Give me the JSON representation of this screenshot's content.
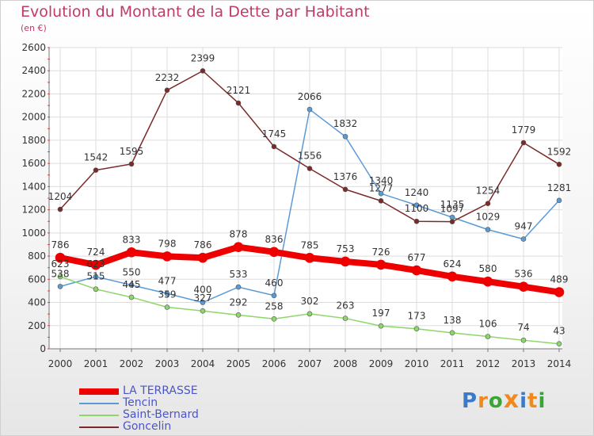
{
  "title": "Evolution du Montant de la Dette par Habitant",
  "subtitle": "(en €)",
  "logo": {
    "letters": [
      "P",
      "r",
      "o",
      "x",
      "i",
      "t",
      "i"
    ],
    "colors": [
      "#3a7ac9",
      "#f08a1e",
      "#3aa537",
      "#f08a1e",
      "#3a7ac9",
      "#f08a1e",
      "#3aa537"
    ]
  },
  "chart_data": {
    "type": "line",
    "title": "Evolution du Montant de la Dette par Habitant",
    "subtitle": "(en €)",
    "x": [
      "2000",
      "2001",
      "2002",
      "2003",
      "2004",
      "2005",
      "2006",
      "2007",
      "2008",
      "2009",
      "2010",
      "2011",
      "2012",
      "2013",
      "2014"
    ],
    "ylim": [
      0,
      2600
    ],
    "yticks": [
      "0",
      "200",
      "400",
      "600",
      "800",
      "1000",
      "1200",
      "1400",
      "1600",
      "1800",
      "2000",
      "2200",
      "2400",
      "2600"
    ],
    "grid": true,
    "legend_position": "bottom-left",
    "series": [
      {
        "name": "LA TERRASSE",
        "color": "#ee0000",
        "width": 8,
        "values": [
          786,
          724,
          833,
          798,
          786,
          878,
          836,
          785,
          753,
          726,
          677,
          624,
          580,
          536,
          489
        ]
      },
      {
        "name": "Tencin",
        "color": "#5b9bd5",
        "width": 1.5,
        "values": [
          538,
          623,
          550,
          477,
          400,
          533,
          460,
          2066,
          1832,
          1340,
          1240,
          1135,
          1029,
          947,
          1281
        ]
      },
      {
        "name": "Saint-Bernard",
        "color": "#8ed56a",
        "width": 1.5,
        "values": [
          623,
          515,
          445,
          359,
          327,
          292,
          258,
          302,
          263,
          197,
          173,
          138,
          106,
          74,
          43
        ]
      },
      {
        "name": "Goncelin",
        "color": "#7a2a2a",
        "width": 1.5,
        "values": [
          1204,
          1542,
          1595,
          2232,
          2399,
          2121,
          1745,
          1556,
          1376,
          1277,
          1100,
          1097,
          1254,
          1779,
          1592
        ]
      }
    ]
  }
}
